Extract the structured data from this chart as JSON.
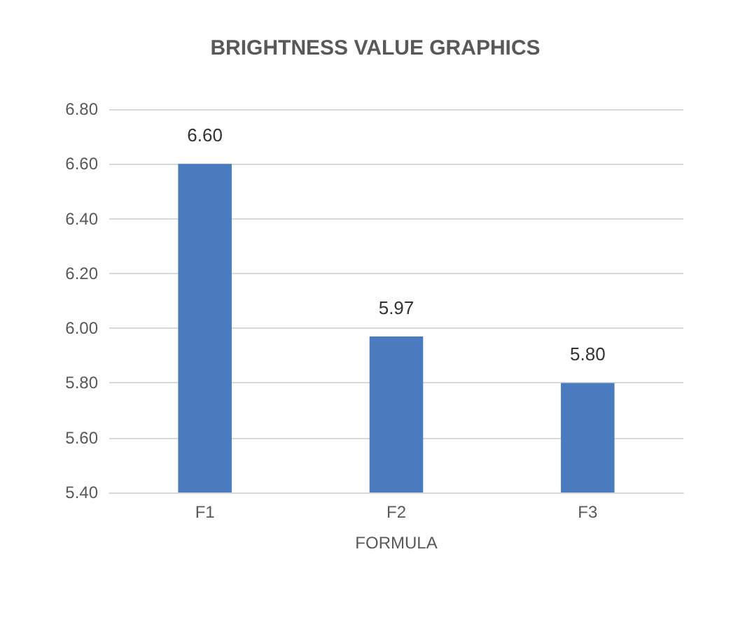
{
  "chart_data": {
    "type": "bar",
    "title": "BRIGHTNESS VALUE GRAPHICS",
    "xlabel": "FORMULA",
    "categories": [
      "F1",
      "F2",
      "F3"
    ],
    "values": [
      6.6,
      5.97,
      5.8
    ],
    "color": "#4a7bbf",
    "ylim": [
      5.4,
      6.8
    ],
    "yticks": [
      {
        "value": 5.4,
        "label": "5.40"
      },
      {
        "value": 5.6,
        "label": "5.60"
      },
      {
        "value": 5.8,
        "label": "5.80"
      },
      {
        "value": 6.0,
        "label": "6.00"
      },
      {
        "value": 6.2,
        "label": "6.20"
      },
      {
        "value": 6.4,
        "label": "6.40"
      },
      {
        "value": 6.6,
        "label": "6.60"
      },
      {
        "value": 6.8,
        "label": "6.80"
      }
    ],
    "grid": "y",
    "value_labels": [
      "6.60",
      "5.97",
      "5.80"
    ]
  }
}
